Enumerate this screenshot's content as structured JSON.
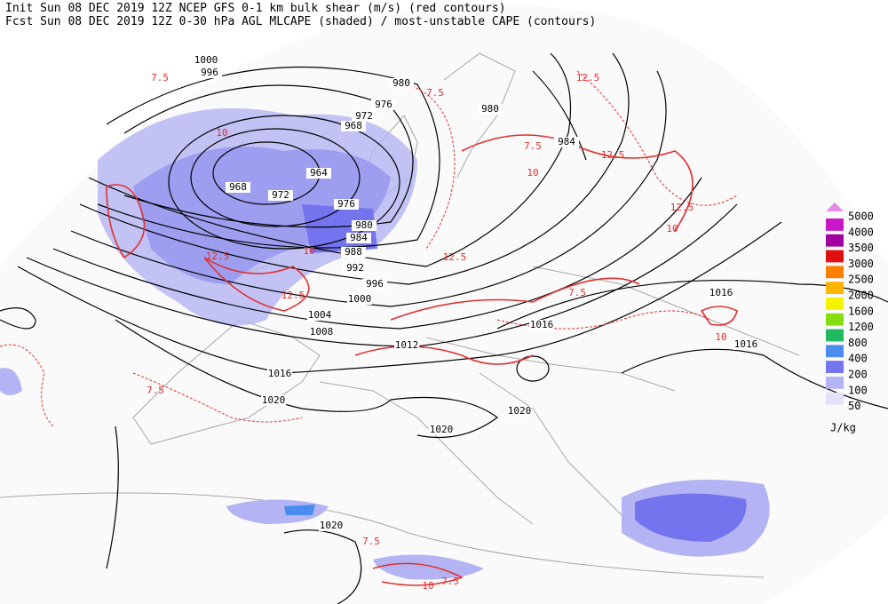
{
  "header": {
    "line1": "Init  Sun 08 DEC 2019 12Z  NCEP GFS 0-1 km bulk shear (m/s) (red contours)",
    "line2": "Fcst Sun 08 DEC 2019 12Z  0-30 hPa AGL MLCAPE (shaded) / most-unstable CAPE (contours)"
  },
  "isobar_labels": [
    1000,
    996,
    980,
    976,
    972,
    968,
    964,
    968,
    972,
    976,
    980,
    984,
    988,
    992,
    996,
    1000,
    1004,
    1008,
    1012,
    1016,
    1020,
    1020,
    1020,
    1016,
    1016,
    1016,
    1020,
    980,
    984
  ],
  "shear_labels": [
    7.5,
    12.5,
    10,
    12.5,
    7.5,
    10,
    7.5,
    7.5,
    10,
    7.5,
    12.5,
    10,
    12.5,
    10,
    12.5,
    7.5,
    7.5,
    10,
    12.5
  ],
  "legend": {
    "levels": [
      5000,
      4000,
      3500,
      3000,
      2500,
      2000,
      1600,
      1200,
      800,
      400,
      200,
      100,
      50
    ],
    "colors": [
      "#e88ae8",
      "#c818c8",
      "#a000a0",
      "#e01010",
      "#ff7f00",
      "#ffb400",
      "#f4f400",
      "#88dd10",
      "#20b860",
      "#4a8cf0",
      "#7474ee",
      "#b4b4f4",
      "#e2e2fa"
    ],
    "unit": "J/kg"
  }
}
